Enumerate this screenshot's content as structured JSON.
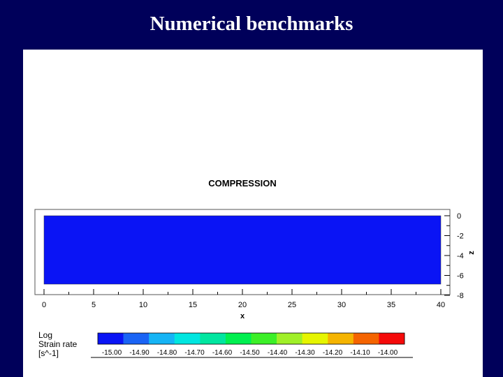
{
  "slide": {
    "title": "Numerical benchmarks"
  },
  "plot": {
    "title": "COMPRESSION",
    "field_color": "#0a14f5",
    "x_axis": {
      "label": "x",
      "range": [
        0,
        40
      ],
      "ticks": [
        "0",
        "5",
        "10",
        "15",
        "20",
        "25",
        "30",
        "35",
        "40"
      ]
    },
    "z_axis": {
      "label": "z",
      "range": [
        -8,
        0
      ],
      "ticks": [
        "0",
        "-2",
        "-4",
        "-6",
        "-8"
      ]
    }
  },
  "legend": {
    "title_lines": [
      "Log",
      "Strain rate",
      "[s^-1]"
    ],
    "labels": [
      "-15.00",
      "-14.90",
      "-14.80",
      "-14.70",
      "-14.60",
      "-14.50",
      "-14.40",
      "-14.30",
      "-14.20",
      "-14.10",
      "-14.00"
    ],
    "colors": [
      "#0a14f5",
      "#1a64f5",
      "#16b4f5",
      "#00e6e0",
      "#00e6a0",
      "#00f050",
      "#3cf028",
      "#a0f028",
      "#e6f500",
      "#f5b400",
      "#f56400",
      "#f50a0a"
    ]
  }
}
